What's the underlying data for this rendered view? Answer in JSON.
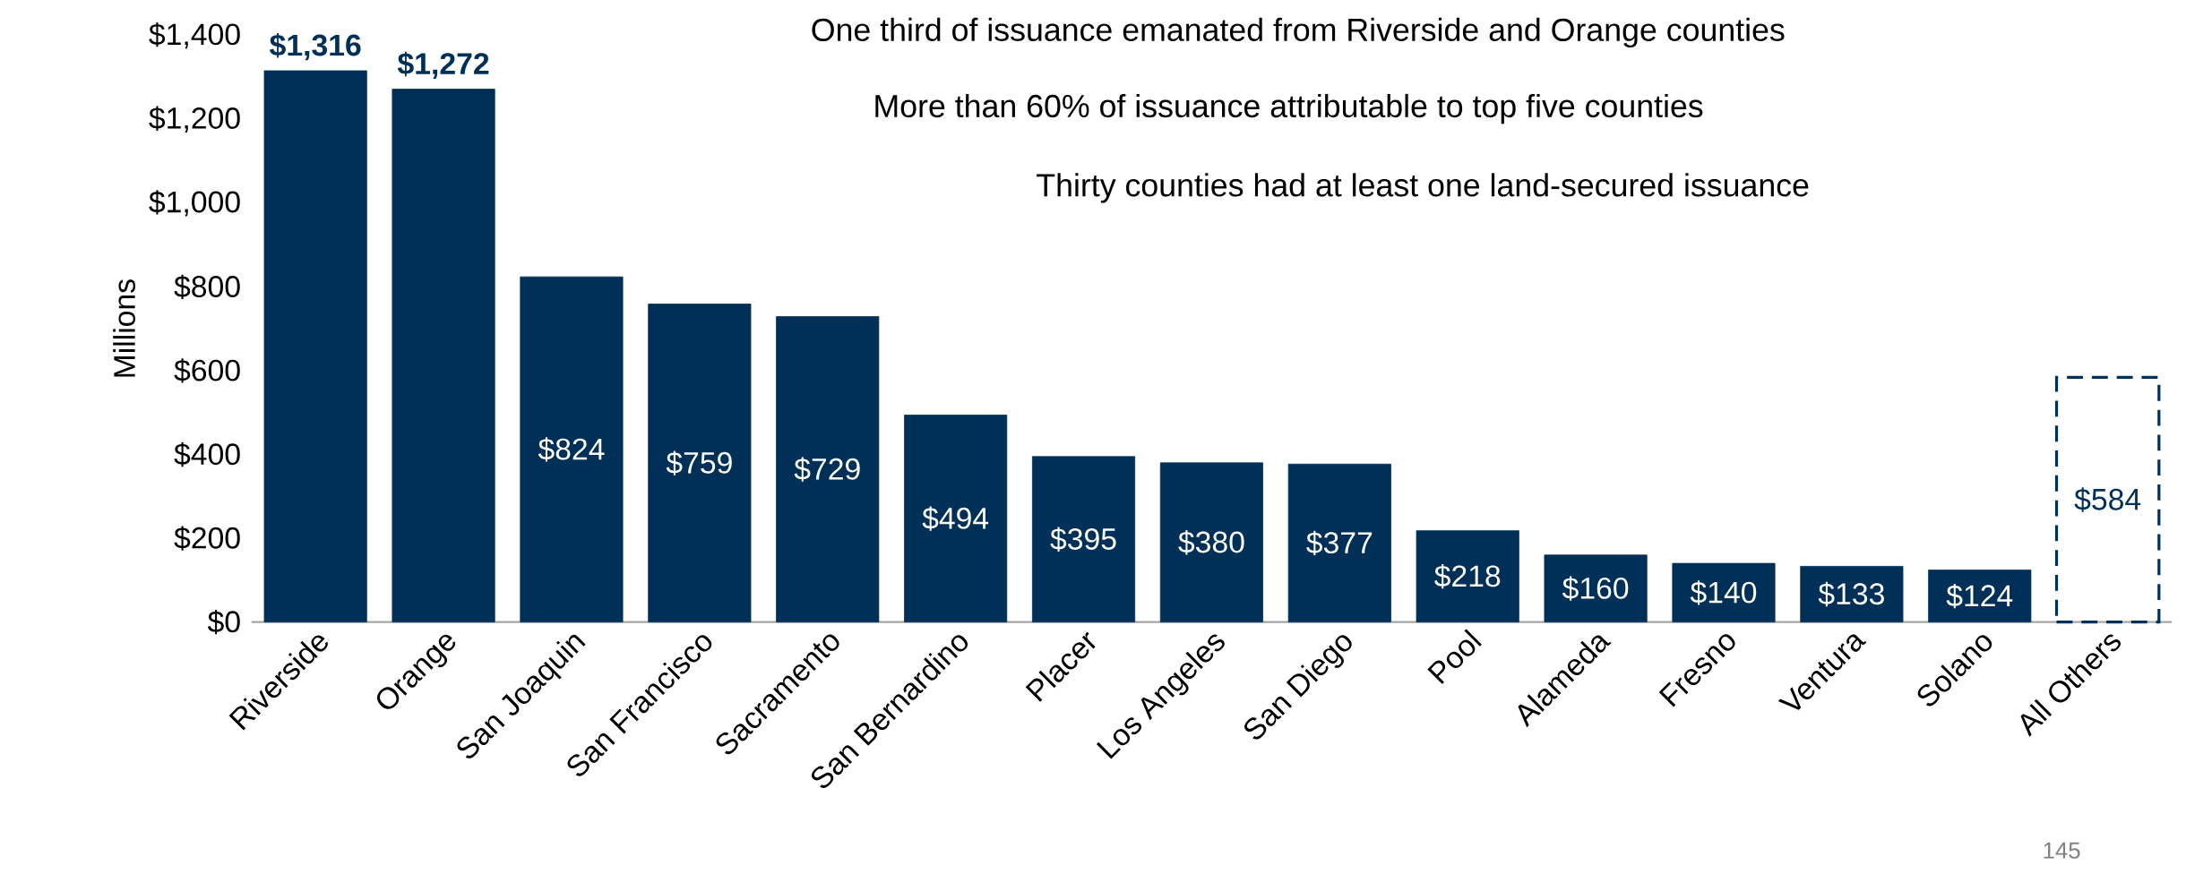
{
  "chart_data": {
    "type": "bar",
    "ylabel": "Millions",
    "categories": [
      "Riverside",
      "Orange",
      "San Joaquin",
      "San Francisco",
      "Sacramento",
      "San Bernardino",
      "Placer",
      "Los Angeles",
      "San Diego",
      "Pool",
      "Alameda",
      "Fresno",
      "Ventura",
      "Solano",
      "All Others"
    ],
    "series": [
      {
        "color": "#003057",
        "line_style": "solid",
        "values": [
          1316,
          1272,
          824,
          759,
          729,
          494,
          395,
          380,
          377,
          218,
          160,
          140,
          133,
          124,
          null
        ],
        "value_labels": [
          "$1,316",
          "$1,272",
          "$824",
          "$759",
          "$729",
          "$494",
          "$395",
          "$380",
          "$377",
          "$218",
          "$160",
          "$140",
          "$133",
          "$124",
          null
        ]
      },
      {
        "color": "#003057",
        "line_style": "dashed",
        "values": [
          null,
          null,
          null,
          null,
          null,
          null,
          null,
          null,
          null,
          null,
          null,
          null,
          null,
          null,
          584
        ],
        "value_labels": [
          null,
          null,
          null,
          null,
          null,
          null,
          null,
          null,
          null,
          null,
          null,
          null,
          null,
          null,
          "$584"
        ]
      }
    ],
    "ylim": [
      0,
      1400
    ],
    "yticks": [
      {
        "value": 0,
        "label": "$0"
      },
      {
        "value": 200,
        "label": "$200"
      },
      {
        "value": 400,
        "label": "$400"
      },
      {
        "value": 600,
        "label": "$600"
      },
      {
        "value": 800,
        "label": "$800"
      },
      {
        "value": 1000,
        "label": "$1,000"
      },
      {
        "value": 1200,
        "label": "$1,200"
      },
      {
        "value": 1400,
        "label": "$1,400"
      }
    ],
    "grid": false,
    "annotations": [
      "One third of issuance emanated from Riverside and Orange counties",
      "More than 60% of issuance attributable to top five counties",
      "Thirty counties had at least one land-secured issuance",
      "145"
    ]
  }
}
